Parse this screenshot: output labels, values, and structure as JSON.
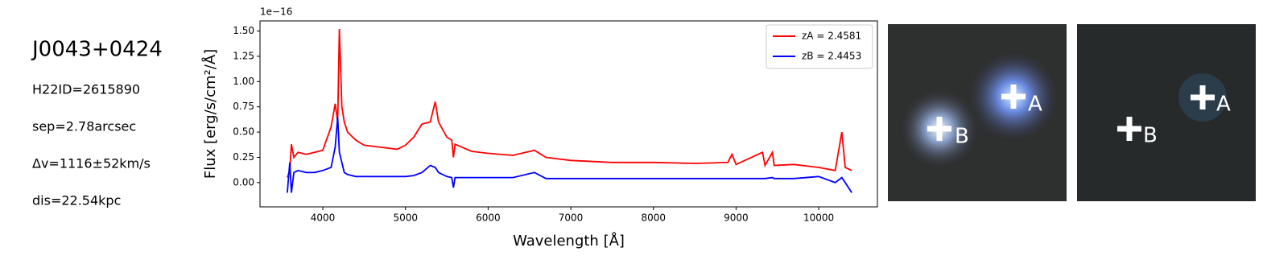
{
  "info": {
    "name": "J0043+0424",
    "h22id": "H22ID=2615890",
    "sep": "sep=2.78arcsec",
    "dv": "Δv=1116±52km/s",
    "dis": "dis=22.54kpc"
  },
  "chart_data": {
    "type": "line",
    "x_label": "Wavelength [Å]",
    "y_label": "Flux [erg/s/cm²/Å]",
    "y_offset_label": "1e−16",
    "x": [
      3570,
      3600,
      3620,
      3650,
      3700,
      3800,
      3900,
      4000,
      4100,
      4150,
      4180,
      4200,
      4230,
      4260,
      4300,
      4400,
      4500,
      4700,
      4900,
      5000,
      5100,
      5200,
      5300,
      5360,
      5400,
      5500,
      5560,
      5580,
      5600,
      5800,
      6000,
      6300,
      6560,
      6700,
      7000,
      7500,
      8000,
      8500,
      8900,
      8950,
      9000,
      9320,
      9350,
      9440,
      9460,
      9700,
      10000,
      10200,
      10280,
      10320,
      10400
    ],
    "series": [
      {
        "name": "zA = 2.4581",
        "color": "#ff0000",
        "values": [
          0.05,
          0.12,
          0.38,
          0.25,
          0.3,
          0.28,
          0.3,
          0.32,
          0.55,
          0.78,
          0.6,
          1.52,
          0.75,
          0.6,
          0.5,
          0.42,
          0.37,
          0.35,
          0.33,
          0.37,
          0.45,
          0.58,
          0.6,
          0.8,
          0.6,
          0.45,
          0.42,
          0.25,
          0.38,
          0.31,
          0.29,
          0.27,
          0.32,
          0.25,
          0.22,
          0.2,
          0.2,
          0.19,
          0.2,
          0.28,
          0.18,
          0.3,
          0.17,
          0.3,
          0.17,
          0.18,
          0.15,
          0.12,
          0.5,
          0.15,
          0.12
        ]
      },
      {
        "name": "zB = 2.4453",
        "color": "#0000ff",
        "values": [
          -0.1,
          0.2,
          -0.1,
          0.1,
          0.12,
          0.1,
          0.1,
          0.12,
          0.15,
          0.35,
          0.65,
          0.3,
          0.2,
          0.1,
          0.08,
          0.06,
          0.06,
          0.06,
          0.06,
          0.06,
          0.07,
          0.1,
          0.17,
          0.15,
          0.1,
          0.06,
          0.05,
          -0.05,
          0.05,
          0.05,
          0.05,
          0.05,
          0.1,
          0.04,
          0.04,
          0.04,
          0.04,
          0.04,
          0.04,
          0.04,
          0.04,
          0.04,
          0.04,
          0.05,
          0.04,
          0.04,
          0.06,
          0.0,
          0.05,
          0.0,
          -0.1
        ]
      }
    ],
    "xlim": [
      3240,
      10710
    ],
    "ylim": [
      -0.24,
      1.6
    ],
    "xticks": [
      4000,
      5000,
      6000,
      7000,
      8000,
      9000,
      10000
    ],
    "yticks": [
      {
        "value": 0,
        "label": "0.00"
      },
      {
        "value": 0.25,
        "label": "0.25"
      },
      {
        "value": 0.5,
        "label": "0.50"
      },
      {
        "value": 0.75,
        "label": "0.75"
      },
      {
        "value": 1,
        "label": "1.00"
      },
      {
        "value": 1.25,
        "label": "1.25"
      },
      {
        "value": 1.5,
        "label": "1.50"
      }
    ],
    "legend": "upper right"
  },
  "images": [
    {
      "a": "A",
      "b": "B"
    },
    {
      "a": "A",
      "b": "B"
    }
  ]
}
